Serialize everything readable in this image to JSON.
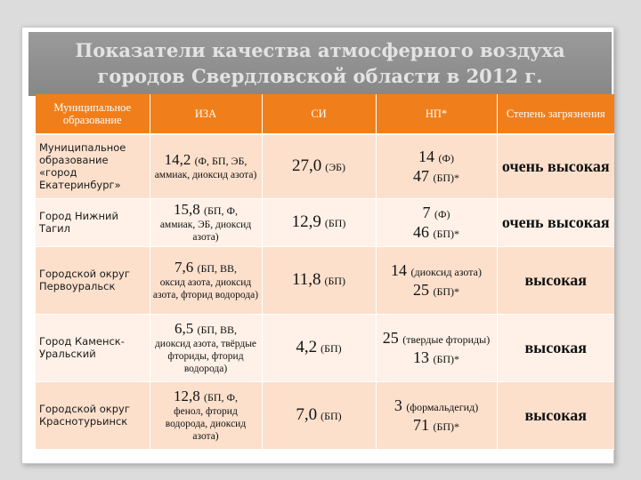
{
  "title": [
    "Показатели качества атмосферного воздуха",
    "городов Свердловской области в 2012 г."
  ],
  "headers": {
    "municipality": "Муниципальное образование",
    "isa": "ИЗА",
    "si": "СИ",
    "np": "НП*",
    "degree": "Степень загрязнения"
  },
  "rows": [
    {
      "municipality": "Муниципальное образование «город Екатеринбург»",
      "isa_value": "14,2",
      "isa_paren": "(Ф, БП, ЭБ,",
      "isa_detail": "аммиак, диоксид азота)",
      "si_value": "27,0",
      "si_paren": "(ЭБ)",
      "np1_value": "14",
      "np1_paren": "(Ф)",
      "np2_value": "47",
      "np2_paren": "(БП)*",
      "degree": "очень высокая"
    },
    {
      "municipality": "Город Нижний Тагил",
      "isa_value": "15,8",
      "isa_paren": "(БП, Ф,",
      "isa_detail": "аммиак, ЭБ, диоксид азота)",
      "si_value": "12,9",
      "si_paren": "(БП)",
      "np1_value": "7",
      "np1_paren": "(Ф)",
      "np2_value": "46",
      "np2_paren": "(БП)*",
      "degree": "очень высокая"
    },
    {
      "municipality": "Городской округ Первоуральск",
      "isa_value": "7,6",
      "isa_paren": "(БП, ВВ,",
      "isa_detail": "оксид азота, диоксид азота, фторид водорода)",
      "si_value": "11,8",
      "si_paren": "(БП)",
      "np1_value": "14",
      "np1_paren": "(диоксид азота)",
      "np2_value": "25",
      "np2_paren": "(БП)*",
      "degree": "высокая"
    },
    {
      "municipality": "Город Каменск-Уральский",
      "isa_value": "6,5",
      "isa_paren": "(БП, ВВ,",
      "isa_detail": "диоксид азота, твёрдые фториды, фторид водорода)",
      "si_value": "4,2",
      "si_paren": "(БП)",
      "np1_value": "25",
      "np1_paren": "(твердые фториды)",
      "np2_value": "13",
      "np2_paren": "(БП)*",
      "degree": "высокая"
    },
    {
      "municipality": "Городской округ Краснотурьинск",
      "isa_value": "12,8",
      "isa_paren": "(БП, Ф,",
      "isa_detail": "фенол, фторид водорода, диоксид азота)",
      "si_value": "7,0",
      "si_paren": "(БП)",
      "np1_value": "3",
      "np1_paren": "(формальдегид)",
      "np2_value": "71",
      "np2_paren": "(БП)*",
      "degree": "высокая"
    }
  ]
}
